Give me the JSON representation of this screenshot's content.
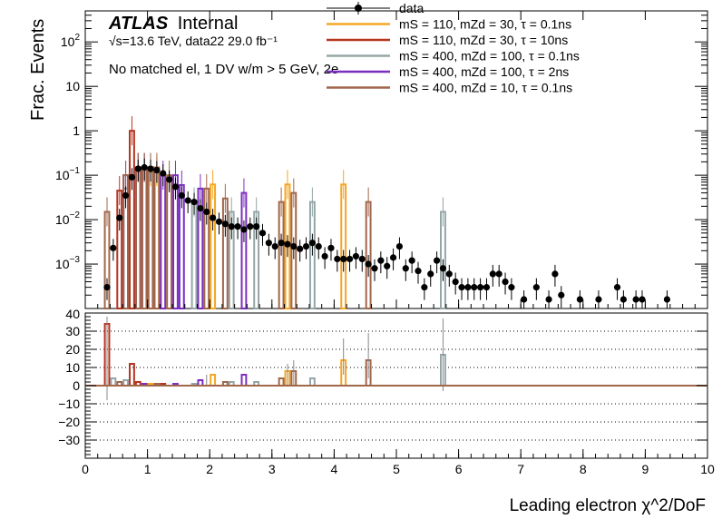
{
  "chart_data": [
    {
      "type": "histogram",
      "panel": "main",
      "title": "",
      "labels": {
        "atlas": "ATLAS",
        "atlas_suffix": "Internal",
        "energy_line": "√s=13.6 TeV, data22 29.0 fb⁻¹",
        "selection": "No matched el, 1 DV w/m > 5 GeV, 2e"
      },
      "xlabel": "Leading electron χ^2/DoF",
      "ylabel": "Frac. Events",
      "yscale": "log",
      "xlim": [
        0,
        10
      ],
      "ylim": [
        0.0001,
        500
      ],
      "x_ticks": [
        "0",
        "1",
        "2",
        "3",
        "4",
        "5",
        "6",
        "7",
        "8",
        "9",
        "10"
      ],
      "y_ticks": [
        {
          "v": 0.001,
          "base": "10",
          "exp": "−3"
        },
        {
          "v": 0.01,
          "base": "10",
          "exp": "−2"
        },
        {
          "v": 0.1,
          "base": "10",
          "exp": "−1"
        },
        {
          "v": 1,
          "base": "1",
          "exp": ""
        },
        {
          "v": 10,
          "base": "10",
          "exp": ""
        },
        {
          "v": 100,
          "base": "10",
          "exp": "2"
        }
      ],
      "legend": {
        "position": "top-right",
        "entries": [
          {
            "label": "data",
            "kind": "data"
          },
          {
            "label": "mS = 110, mZd = 30, τ = 0.1ns",
            "color": "#f5a623"
          },
          {
            "label": "mS = 110, mZd = 30, τ = 10ns",
            "color": "#b5351f"
          },
          {
            "label": "mS = 400, mZd = 100, τ = 0.1ns",
            "color": "#95a5a6"
          },
          {
            "label": "mS = 400, mZd = 100, τ = 2ns",
            "color": "#7b2fbf"
          },
          {
            "label": "mS = 400, mZd = 10, τ = 0.1ns",
            "color": "#a0674b"
          }
        ]
      },
      "bin_width": 0.1,
      "data_points": [
        [
          0.35,
          0.0003
        ],
        [
          0.45,
          0.0023
        ],
        [
          0.55,
          0.011
        ],
        [
          0.65,
          0.035
        ],
        [
          0.75,
          0.09
        ],
        [
          0.85,
          0.14
        ],
        [
          0.95,
          0.15
        ],
        [
          1.05,
          0.14
        ],
        [
          1.15,
          0.13
        ],
        [
          1.25,
          0.11
        ],
        [
          1.35,
          0.08
        ],
        [
          1.45,
          0.055
        ],
        [
          1.55,
          0.035
        ],
        [
          1.65,
          0.027
        ],
        [
          1.75,
          0.025
        ],
        [
          1.85,
          0.018
        ],
        [
          1.95,
          0.015
        ],
        [
          2.05,
          0.011
        ],
        [
          2.15,
          0.009
        ],
        [
          2.25,
          0.008
        ],
        [
          2.35,
          0.007
        ],
        [
          2.45,
          0.007
        ],
        [
          2.55,
          0.006
        ],
        [
          2.65,
          0.007
        ],
        [
          2.75,
          0.007
        ],
        [
          2.85,
          0.005
        ],
        [
          2.95,
          0.003
        ],
        [
          3.05,
          0.0025
        ],
        [
          3.15,
          0.003
        ],
        [
          3.25,
          0.0028
        ],
        [
          3.35,
          0.0025
        ],
        [
          3.45,
          0.0022
        ],
        [
          3.55,
          0.0025
        ],
        [
          3.65,
          0.003
        ],
        [
          3.75,
          0.0025
        ],
        [
          3.85,
          0.0015
        ],
        [
          3.95,
          0.0023
        ],
        [
          4.05,
          0.0013
        ],
        [
          4.15,
          0.0013
        ],
        [
          4.25,
          0.0013
        ],
        [
          4.35,
          0.0015
        ],
        [
          4.45,
          0.0013
        ],
        [
          4.55,
          0.001
        ],
        [
          4.65,
          0.0008
        ],
        [
          4.75,
          0.0012
        ],
        [
          4.85,
          0.0009
        ],
        [
          4.95,
          0.0014
        ],
        [
          5.05,
          0.0025
        ],
        [
          5.15,
          0.0008
        ],
        [
          5.25,
          0.0012
        ],
        [
          5.35,
          0.0007
        ],
        [
          5.45,
          0.0003
        ],
        [
          5.55,
          0.0006
        ],
        [
          5.65,
          0.0012
        ],
        [
          5.75,
          0.0008
        ],
        [
          5.85,
          0.0006
        ],
        [
          5.95,
          0.0004
        ],
        [
          6.05,
          0.0003
        ],
        [
          6.15,
          0.0003
        ],
        [
          6.25,
          0.0003
        ],
        [
          6.35,
          0.0003
        ],
        [
          6.45,
          0.0003
        ],
        [
          6.55,
          0.0006
        ],
        [
          6.65,
          0.0006
        ],
        [
          6.75,
          0.0004
        ],
        [
          6.85,
          0.0003
        ],
        [
          7.05,
          0.00016
        ],
        [
          7.25,
          0.0003
        ],
        [
          7.45,
          0.00016
        ],
        [
          7.55,
          0.0006
        ],
        [
          7.65,
          0.0002
        ],
        [
          7.95,
          0.00016
        ],
        [
          8.25,
          0.00016
        ],
        [
          8.55,
          0.0003
        ],
        [
          8.65,
          0.00016
        ],
        [
          8.85,
          0.00016
        ],
        [
          8.95,
          0.00016
        ],
        [
          9.35,
          0.00016
        ]
      ],
      "signal_series": [
        {
          "name": "mS = 110, mZd = 30, τ = 0.1ns",
          "color": "#f5a623",
          "bins": [
            [
              2.05,
              0.062
            ],
            [
              3.25,
              0.062
            ],
            [
              4.15,
              0.062
            ],
            [
              1.05,
              0.12
            ],
            [
              1.15,
              0.12
            ]
          ]
        },
        {
          "name": "mS = 110, mZd = 30, τ = 10ns",
          "color": "#b5351f",
          "bins": [
            [
              0.55,
              0.045
            ],
            [
              0.75,
              1.0
            ],
            [
              0.85,
              0.15
            ],
            [
              0.95,
              0.15
            ]
          ]
        },
        {
          "name": "mS = 400, mZd = 100, τ = 0.1ns",
          "color": "#95a5a6",
          "bins": [
            [
              0.65,
              0.05
            ],
            [
              1.75,
              0.025
            ],
            [
              2.75,
              0.015
            ],
            [
              3.65,
              0.025
            ],
            [
              5.75,
              0.015
            ],
            [
              2.35,
              0.015
            ]
          ]
        },
        {
          "name": "mS = 400, mZd = 100, τ = 2ns",
          "color": "#7b2fbf",
          "bins": [
            [
              0.65,
              0.1
            ],
            [
              0.85,
              0.15
            ],
            [
              0.95,
              0.15
            ],
            [
              1.05,
              0.15
            ],
            [
              1.25,
              0.1
            ],
            [
              1.45,
              0.1
            ],
            [
              1.55,
              0.06
            ],
            [
              1.85,
              0.05
            ],
            [
              2.55,
              0.04
            ]
          ]
        },
        {
          "name": "mS = 400, mZd = 10, τ = 0.1ns",
          "color": "#a0674b",
          "bins": [
            [
              0.35,
              0.015
            ],
            [
              0.65,
              0.1
            ],
            [
              0.85,
              0.15
            ],
            [
              0.95,
              0.15
            ],
            [
              1.05,
              0.15
            ],
            [
              1.15,
              0.15
            ],
            [
              1.35,
              0.1
            ],
            [
              1.95,
              0.05
            ],
            [
              2.25,
              0.03
            ],
            [
              3.15,
              0.025
            ],
            [
              3.35,
              0.04
            ],
            [
              4.55,
              0.025
            ]
          ]
        }
      ]
    },
    {
      "type": "histogram",
      "panel": "ratio",
      "ylim": [
        -40,
        40
      ],
      "y_ticks": [
        "30",
        "20",
        "10",
        "0",
        "−10",
        "−20",
        "−30"
      ],
      "y_top_label": "40",
      "signal_series": [
        {
          "color": "#f5a623",
          "bins": [
            [
              2.05,
              6
            ],
            [
              3.25,
              8
            ],
            [
              4.15,
              14
            ],
            [
              1.05,
              1
            ]
          ]
        },
        {
          "color": "#b5351f",
          "bins": [
            [
              0.35,
              34
            ],
            [
              0.75,
              12
            ],
            [
              0.85,
              2
            ],
            [
              1.25,
              1
            ]
          ]
        },
        {
          "color": "#95a5a6",
          "bins": [
            [
              0.45,
              4
            ],
            [
              0.65,
              3
            ],
            [
              1.75,
              1
            ],
            [
              2.35,
              2
            ],
            [
              2.75,
              2
            ],
            [
              3.65,
              4
            ],
            [
              5.75,
              17
            ]
          ]
        },
        {
          "color": "#7b2fbf",
          "bins": [
            [
              0.95,
              1
            ],
            [
              1.45,
              1
            ],
            [
              1.85,
              3
            ],
            [
              2.55,
              6
            ]
          ]
        },
        {
          "color": "#a0674b",
          "bins": [
            [
              0.55,
              2
            ],
            [
              1.15,
              1
            ],
            [
              2.25,
              2
            ],
            [
              3.15,
              4
            ],
            [
              3.35,
              8
            ],
            [
              4.55,
              14
            ]
          ]
        }
      ],
      "error_bars": [
        [
          0.35,
          -8,
          38
        ],
        [
          3.35,
          0,
          14
        ],
        [
          4.15,
          6,
          26
        ],
        [
          4.55,
          4,
          29
        ],
        [
          5.75,
          -3,
          37
        ],
        [
          3.25,
          0,
          12
        ],
        [
          1.95,
          0,
          6
        ]
      ]
    }
  ]
}
